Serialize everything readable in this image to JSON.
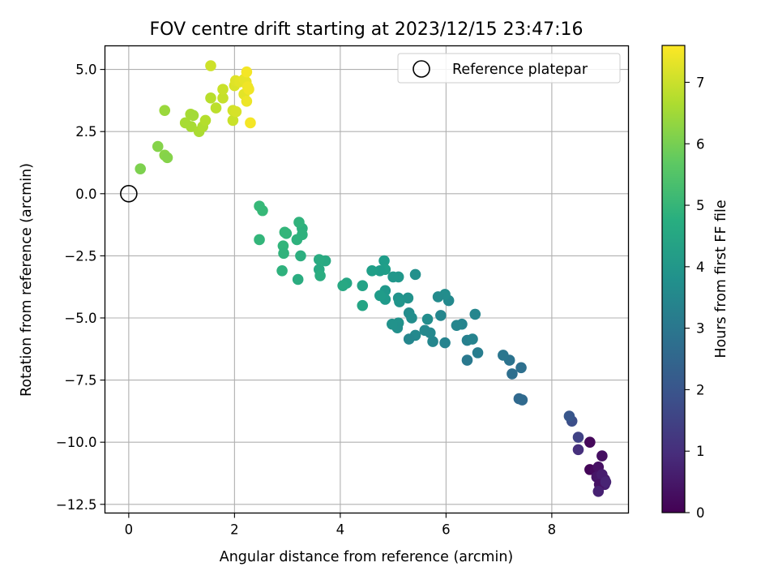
{
  "chart_data": {
    "type": "scatter",
    "title": "FOV centre drift starting at 2023/12/15 23:47:16",
    "xlabel": "Angular distance from reference (arcmin)",
    "ylabel": "Rotation from reference (arcmin)",
    "xlim": [
      -0.45,
      9.45
    ],
    "ylim": [
      -12.85,
      5.95
    ],
    "xticks": [
      0,
      2,
      4,
      6,
      8
    ],
    "xtick_labels": [
      "0",
      "2",
      "4",
      "6",
      "8"
    ],
    "yticks": [
      5.0,
      2.5,
      0.0,
      -2.5,
      -5.0,
      -7.5,
      -10.0,
      -12.5
    ],
    "ytick_labels": [
      "5.0",
      "2.5",
      "0.0",
      "−2.5",
      "−5.0",
      "−7.5",
      "−10.0",
      "−12.5"
    ],
    "grid": true,
    "legend": {
      "placement": "top-right",
      "entries": [
        {
          "label": "Reference platepar",
          "marker": "open-circle"
        }
      ]
    },
    "reference_point": {
      "x": 0.0,
      "y": 0.0
    },
    "colorbar": {
      "label": "Hours from first FF file",
      "colormap": "viridis",
      "range": [
        0,
        7.6
      ],
      "ticks": [
        0,
        1,
        2,
        3,
        4,
        5,
        6,
        7
      ],
      "tick_labels": [
        "0",
        "1",
        "2",
        "3",
        "4",
        "5",
        "6",
        "7"
      ]
    },
    "series": [
      {
        "points": [
          {
            "x": 8.72,
            "y": -10.0,
            "c": 0.15
          },
          {
            "x": 8.95,
            "y": -10.55,
            "c": 0.3
          },
          {
            "x": 8.72,
            "y": -11.1,
            "c": 0.1
          },
          {
            "x": 8.82,
            "y": -11.15,
            "c": 0.2
          },
          {
            "x": 8.88,
            "y": -11.0,
            "c": 0.35
          },
          {
            "x": 8.85,
            "y": -11.4,
            "c": 0.45
          },
          {
            "x": 8.92,
            "y": -11.55,
            "c": 0.5
          },
          {
            "x": 9.0,
            "y": -11.5,
            "c": 0.55
          },
          {
            "x": 8.95,
            "y": -11.3,
            "c": 0.6
          },
          {
            "x": 9.0,
            "y": -11.7,
            "c": 0.65
          },
          {
            "x": 8.9,
            "y": -11.7,
            "c": 0.4
          },
          {
            "x": 8.88,
            "y": -11.98,
            "c": 0.7
          },
          {
            "x": 9.02,
            "y": -11.6,
            "c": 0.75
          },
          {
            "x": 8.5,
            "y": -10.3,
            "c": 1.05
          },
          {
            "x": 8.5,
            "y": -9.8,
            "c": 1.5
          },
          {
            "x": 8.38,
            "y": -9.15,
            "c": 1.85
          },
          {
            "x": 8.33,
            "y": -8.95,
            "c": 2.05
          },
          {
            "x": 7.38,
            "y": -8.25,
            "c": 2.55
          },
          {
            "x": 7.44,
            "y": -8.3,
            "c": 2.6
          },
          {
            "x": 7.42,
            "y": -7.0,
            "c": 2.8
          },
          {
            "x": 7.25,
            "y": -7.25,
            "c": 2.75
          },
          {
            "x": 7.2,
            "y": -6.7,
            "c": 2.9
          },
          {
            "x": 7.08,
            "y": -6.5,
            "c": 3.0
          },
          {
            "x": 6.6,
            "y": -6.4,
            "c": 3.2
          },
          {
            "x": 6.4,
            "y": -6.7,
            "c": 3.1
          },
          {
            "x": 6.4,
            "y": -5.9,
            "c": 3.3
          },
          {
            "x": 6.5,
            "y": -5.85,
            "c": 3.4
          },
          {
            "x": 6.55,
            "y": -4.85,
            "c": 3.5
          },
          {
            "x": 6.3,
            "y": -5.25,
            "c": 3.45
          },
          {
            "x": 6.2,
            "y": -5.3,
            "c": 3.5
          },
          {
            "x": 6.05,
            "y": -4.3,
            "c": 3.6
          },
          {
            "x": 5.98,
            "y": -4.05,
            "c": 3.7
          },
          {
            "x": 5.85,
            "y": -4.15,
            "c": 3.65
          },
          {
            "x": 5.9,
            "y": -4.9,
            "c": 3.5
          },
          {
            "x": 5.98,
            "y": -6.0,
            "c": 3.4
          },
          {
            "x": 5.75,
            "y": -5.95,
            "c": 3.5
          },
          {
            "x": 5.6,
            "y": -5.5,
            "c": 3.6
          },
          {
            "x": 5.7,
            "y": -5.6,
            "c": 3.55
          },
          {
            "x": 5.65,
            "y": -5.05,
            "c": 3.7
          },
          {
            "x": 5.42,
            "y": -5.7,
            "c": 3.6
          },
          {
            "x": 5.3,
            "y": -5.85,
            "c": 3.5
          },
          {
            "x": 5.3,
            "y": -4.8,
            "c": 3.7
          },
          {
            "x": 5.35,
            "y": -5.0,
            "c": 3.75
          },
          {
            "x": 5.42,
            "y": -3.25,
            "c": 3.8
          },
          {
            "x": 5.28,
            "y": -4.2,
            "c": 3.85
          },
          {
            "x": 5.1,
            "y": -4.2,
            "c": 3.9
          },
          {
            "x": 5.12,
            "y": -4.35,
            "c": 3.95
          },
          {
            "x": 5.1,
            "y": -3.35,
            "c": 4.0
          },
          {
            "x": 5.0,
            "y": -3.35,
            "c": 4.0
          },
          {
            "x": 5.1,
            "y": -5.2,
            "c": 3.85
          },
          {
            "x": 5.08,
            "y": -5.4,
            "c": 3.8
          },
          {
            "x": 4.98,
            "y": -5.25,
            "c": 3.85
          },
          {
            "x": 4.85,
            "y": -3.9,
            "c": 4.05
          },
          {
            "x": 4.85,
            "y": -4.25,
            "c": 4.1
          },
          {
            "x": 4.75,
            "y": -4.1,
            "c": 4.15
          },
          {
            "x": 4.83,
            "y": -2.7,
            "c": 4.2
          },
          {
            "x": 4.85,
            "y": -3.05,
            "c": 4.25
          },
          {
            "x": 4.75,
            "y": -3.1,
            "c": 4.2
          },
          {
            "x": 4.6,
            "y": -3.1,
            "c": 4.25
          },
          {
            "x": 4.42,
            "y": -3.7,
            "c": 4.4
          },
          {
            "x": 4.42,
            "y": -4.5,
            "c": 4.45
          },
          {
            "x": 4.12,
            "y": -3.6,
            "c": 4.5
          },
          {
            "x": 4.05,
            "y": -3.7,
            "c": 4.55
          },
          {
            "x": 3.72,
            "y": -2.7,
            "c": 4.6
          },
          {
            "x": 3.6,
            "y": -2.65,
            "c": 4.65
          },
          {
            "x": 3.6,
            "y": -3.05,
            "c": 4.6
          },
          {
            "x": 3.62,
            "y": -3.3,
            "c": 4.7
          },
          {
            "x": 3.25,
            "y": -2.5,
            "c": 4.75
          },
          {
            "x": 3.2,
            "y": -3.45,
            "c": 4.7
          },
          {
            "x": 3.28,
            "y": -1.4,
            "c": 4.8
          },
          {
            "x": 3.28,
            "y": -1.65,
            "c": 4.85
          },
          {
            "x": 3.22,
            "y": -1.15,
            "c": 4.9
          },
          {
            "x": 3.18,
            "y": -1.85,
            "c": 4.85
          },
          {
            "x": 2.98,
            "y": -1.6,
            "c": 4.95
          },
          {
            "x": 2.95,
            "y": -1.55,
            "c": 5.0
          },
          {
            "x": 2.92,
            "y": -2.1,
            "c": 4.95
          },
          {
            "x": 2.93,
            "y": -2.4,
            "c": 4.9
          },
          {
            "x": 2.9,
            "y": -3.1,
            "c": 4.85
          },
          {
            "x": 2.47,
            "y": -1.85,
            "c": 5.0
          },
          {
            "x": 2.47,
            "y": -0.5,
            "c": 5.1
          },
          {
            "x": 2.53,
            "y": -0.68,
            "c": 5.1
          },
          {
            "x": 0.22,
            "y": 1.0,
            "c": 6.1
          },
          {
            "x": 0.55,
            "y": 1.9,
            "c": 6.2
          },
          {
            "x": 0.68,
            "y": 1.55,
            "c": 6.25
          },
          {
            "x": 0.73,
            "y": 1.45,
            "c": 6.2
          },
          {
            "x": 0.68,
            "y": 3.35,
            "c": 6.45
          },
          {
            "x": 1.07,
            "y": 2.85,
            "c": 6.6
          },
          {
            "x": 1.17,
            "y": 3.2,
            "c": 6.6
          },
          {
            "x": 1.22,
            "y": 3.15,
            "c": 6.55
          },
          {
            "x": 1.18,
            "y": 2.7,
            "c": 6.6
          },
          {
            "x": 1.33,
            "y": 2.5,
            "c": 6.65
          },
          {
            "x": 1.4,
            "y": 2.7,
            "c": 6.7
          },
          {
            "x": 1.45,
            "y": 2.95,
            "c": 6.75
          },
          {
            "x": 1.55,
            "y": 3.85,
            "c": 6.8
          },
          {
            "x": 1.65,
            "y": 3.45,
            "c": 6.85
          },
          {
            "x": 1.55,
            "y": 5.15,
            "c": 7.05
          },
          {
            "x": 1.78,
            "y": 3.85,
            "c": 6.95
          },
          {
            "x": 1.78,
            "y": 4.2,
            "c": 7.0
          },
          {
            "x": 1.97,
            "y": 2.95,
            "c": 7.0
          },
          {
            "x": 1.97,
            "y": 3.35,
            "c": 7.1
          },
          {
            "x": 2.03,
            "y": 3.3,
            "c": 7.15
          },
          {
            "x": 2.0,
            "y": 4.35,
            "c": 7.2
          },
          {
            "x": 2.02,
            "y": 4.55,
            "c": 7.25
          },
          {
            "x": 2.1,
            "y": 4.5,
            "c": 7.3
          },
          {
            "x": 2.18,
            "y": 4.0,
            "c": 7.3
          },
          {
            "x": 2.18,
            "y": 4.6,
            "c": 7.35
          },
          {
            "x": 2.22,
            "y": 4.5,
            "c": 7.35
          },
          {
            "x": 2.23,
            "y": 3.72,
            "c": 7.4
          },
          {
            "x": 2.25,
            "y": 4.3,
            "c": 7.45
          },
          {
            "x": 2.27,
            "y": 4.2,
            "c": 7.45
          },
          {
            "x": 2.23,
            "y": 4.9,
            "c": 7.5
          },
          {
            "x": 2.3,
            "y": 2.85,
            "c": 7.5
          }
        ]
      }
    ]
  }
}
